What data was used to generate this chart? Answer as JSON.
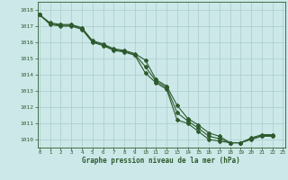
{
  "title": "Graphe pression niveau de la mer (hPa)",
  "bg_color": "#cce8e8",
  "grid_color": "#aacccc",
  "line_color": "#2d5a2d",
  "x_min": 0,
  "x_max": 23,
  "y_min": 1009.5,
  "y_max": 1018.5,
  "y_ticks": [
    1010,
    1011,
    1012,
    1013,
    1014,
    1015,
    1016,
    1017,
    1018
  ],
  "line1": [
    1017.7,
    1017.2,
    1017.1,
    1017.1,
    1016.9,
    1016.1,
    1015.9,
    1015.6,
    1015.5,
    1015.3,
    1014.9,
    1013.7,
    1013.3,
    1012.1,
    1011.3,
    1010.9,
    1010.4,
    1010.2,
    1009.8,
    1009.8,
    1010.1,
    1010.3,
    1010.3
  ],
  "line2": [
    1017.7,
    1017.1,
    1017.0,
    1017.0,
    1016.8,
    1016.0,
    1015.8,
    1015.5,
    1015.4,
    1015.2,
    1014.1,
    1013.5,
    1013.1,
    1011.2,
    1011.0,
    1010.5,
    1010.0,
    1009.9,
    1009.8,
    1009.8,
    1010.0,
    1010.2,
    1010.2
  ],
  "line3": [
    1017.7,
    1017.15,
    1017.05,
    1017.05,
    1016.85,
    1016.05,
    1015.85,
    1015.55,
    1015.45,
    1015.25,
    1014.5,
    1013.6,
    1013.2,
    1011.65,
    1011.15,
    1010.7,
    1010.2,
    1010.05,
    1009.8,
    1009.8,
    1010.05,
    1010.25,
    1010.25
  ]
}
